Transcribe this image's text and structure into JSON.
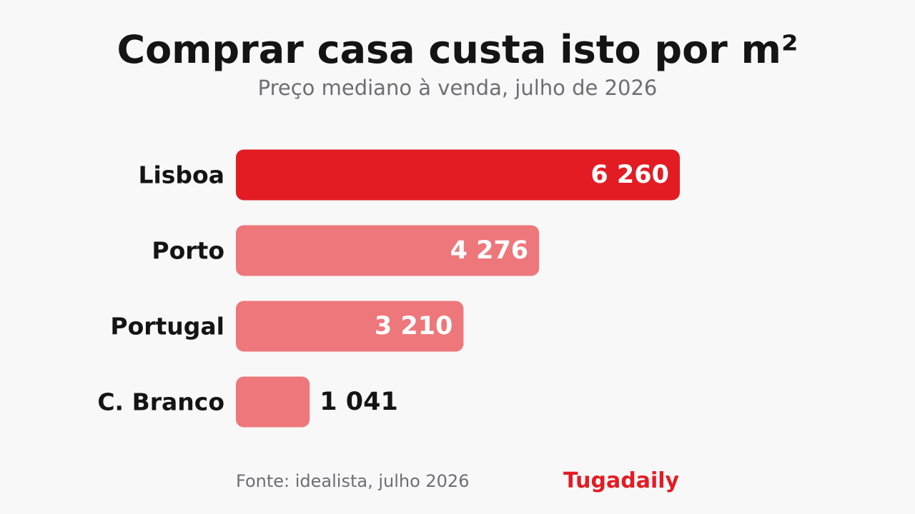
{
  "chart_data": {
    "type": "bar",
    "orientation": "horizontal",
    "title": "Comprar casa custa isto por m²",
    "subtitle": "Preço mediano à venda, julho de 2026",
    "categories": [
      "Lisboa",
      "Porto",
      "Portugal",
      "C. Branco"
    ],
    "values": [
      6260,
      4276,
      3210,
      1041
    ],
    "value_labels": [
      "6 260",
      "4 276",
      "3 210",
      "1 041"
    ],
    "xlim": [
      0,
      6260
    ],
    "grid": false,
    "highlight": "Lisboa"
  },
  "colors": {
    "highlight": "#e31c24",
    "bar": "#ee777b",
    "label_inside": "#ffffff",
    "label_outside": "#141414",
    "category_label": "#141414"
  },
  "footer": {
    "source": "Fonte: idealista, julho 2026",
    "brand": "Tugadaily"
  }
}
